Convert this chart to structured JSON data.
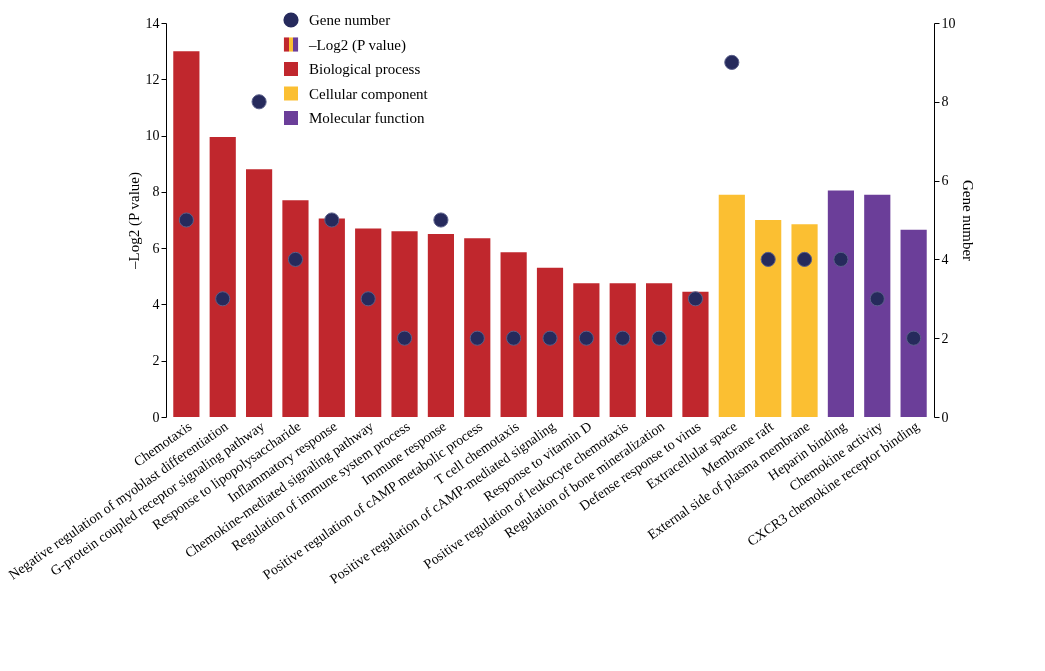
{
  "chart_data": {
    "type": "bar",
    "ylabel": "–Log2 (P value)",
    "y2label": "Gene number",
    "categories": [
      "Chemotaxis",
      "Negative regulation of myoblast differentiation",
      "G-protein coupled receptor signaling pathway",
      "Response to lipopolysaccharide",
      "Inflammatory response",
      "Chemokine-mediated signaling pathway",
      "Regulation of immune system process",
      "Immune response",
      "Positive regulation of cAMP metabolic process",
      "T cell chemotaxis",
      "Positive regulation of cAMP-mediated signaling",
      "Response to vitamin D",
      "Positive regulation of leukocyte chemotaxis",
      "Regulation of bone mineralization",
      "Defense response to virus",
      "Extracellular space",
      "Membrane raft",
      "External side of plasma membrane",
      "Heparin binding",
      "Chemokine activity",
      "CXCR3 chemokine receptor binding"
    ],
    "series": [
      {
        "name": "Biological process",
        "color": "#c0272d",
        "values": [
          13.0,
          9.95,
          8.8,
          7.7,
          7.05,
          6.7,
          6.6,
          6.5,
          6.35,
          5.85,
          5.3,
          4.75,
          4.75,
          4.75,
          4.45,
          null,
          null,
          null,
          null,
          null,
          null
        ]
      },
      {
        "name": "Cellular component",
        "color": "#fbbf32",
        "values": [
          null,
          null,
          null,
          null,
          null,
          null,
          null,
          null,
          null,
          null,
          null,
          null,
          null,
          null,
          null,
          7.9,
          7.0,
          6.85,
          null,
          null,
          null
        ]
      },
      {
        "name": "Molecular function",
        "color": "#6b3e99",
        "values": [
          null,
          null,
          null,
          null,
          null,
          null,
          null,
          null,
          null,
          null,
          null,
          null,
          null,
          null,
          null,
          null,
          null,
          null,
          8.05,
          7.9,
          6.65
        ]
      },
      {
        "name": "Gene number",
        "type": "scatter",
        "axis": "y2",
        "color": "#262a5c",
        "values": [
          5,
          3,
          8,
          4,
          5,
          3,
          2,
          5,
          2,
          2,
          2,
          2,
          2,
          2,
          3,
          9,
          4,
          4,
          4,
          3,
          2
        ]
      }
    ],
    "ylim": [
      0,
      14
    ],
    "yticks": [
      0,
      2,
      4,
      6,
      8,
      10,
      12,
      14
    ],
    "y2lim": [
      0,
      10
    ],
    "y2ticks": [
      0,
      2,
      4,
      6,
      8,
      10
    ],
    "annotations": [
      "–Log2 (P value)"
    ],
    "legend": "top left",
    "marker": "circle",
    "grid": false
  }
}
